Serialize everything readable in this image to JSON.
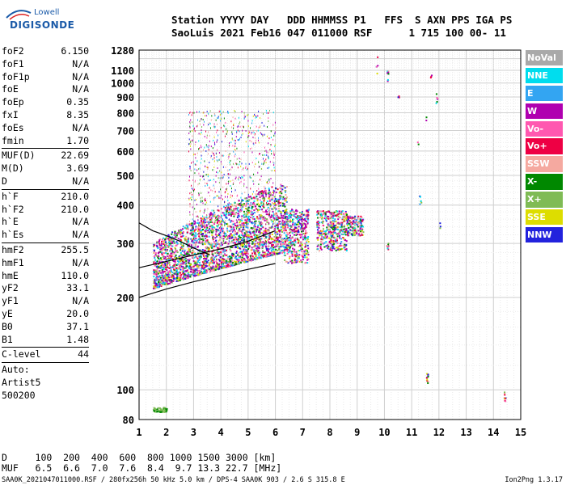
{
  "logo": {
    "top": "Lowell",
    "bottom": "DIGISONDE"
  },
  "header": {
    "line1": "Station YYYY DAY   DDD HHMMSS P1   FFS  S AXN PPS IGA PS",
    "line2": "SaoLuis 2021 Feb16 047 011000 RSF      1 715 100 00- 11"
  },
  "params": {
    "group1": [
      {
        "k": "foF2",
        "v": "6.150"
      },
      {
        "k": "foF1",
        "v": "N/A"
      },
      {
        "k": "foF1p",
        "v": "N/A"
      },
      {
        "k": "foE",
        "v": "N/A"
      },
      {
        "k": "foEp",
        "v": "0.35"
      },
      {
        "k": "fxI",
        "v": "8.35"
      },
      {
        "k": "foEs",
        "v": "N/A"
      },
      {
        "k": "fmin",
        "v": "1.70"
      }
    ],
    "group2": [
      {
        "k": "MUF(D)",
        "v": "22.69"
      },
      {
        "k": "M(D)",
        "v": "3.69"
      },
      {
        "k": "D",
        "v": "N/A"
      }
    ],
    "group3": [
      {
        "k": "h`F",
        "v": "210.0"
      },
      {
        "k": "h`F2",
        "v": "210.0"
      },
      {
        "k": "h`E",
        "v": "N/A"
      },
      {
        "k": "h`Es",
        "v": "N/A"
      }
    ],
    "group4": [
      {
        "k": "hmF2",
        "v": "255.5"
      },
      {
        "k": "hmF1",
        "v": "N/A"
      },
      {
        "k": "hmE",
        "v": "110.0"
      },
      {
        "k": "yF2",
        "v": "33.1"
      },
      {
        "k": "yF1",
        "v": "N/A"
      },
      {
        "k": "yE",
        "v": "20.0"
      },
      {
        "k": "B0",
        "v": "37.1"
      },
      {
        "k": "B1",
        "v": "1.48"
      }
    ],
    "clevel": {
      "k": "C-level",
      "v": "44"
    },
    "auto": [
      "Auto:",
      "Artist5",
      "500200"
    ]
  },
  "legend": [
    {
      "label": "NoVal",
      "color": "#a9a9a9"
    },
    {
      "label": "NNE",
      "color": "#00ddee"
    },
    {
      "label": "E",
      "color": "#33a5f2"
    },
    {
      "label": "W",
      "color": "#b000b0"
    },
    {
      "label": "Vo-",
      "color": "#ff58b0"
    },
    {
      "label": "Vo+",
      "color": "#ee0044"
    },
    {
      "label": "SSW",
      "color": "#f5a9a0"
    },
    {
      "label": "X-",
      "color": "#008800"
    },
    {
      "label": "X+",
      "color": "#7fbb55"
    },
    {
      "label": "SSE",
      "color": "#dddd00"
    },
    {
      "label": "NNW",
      "color": "#2222dd"
    }
  ],
  "bottom": {
    "d_row": "D     100  200  400  600  800 1000 1500 3000 [km]",
    "muf_row": "MUF   6.5  6.6  7.0  7.6  8.4  9.7 13.3 22.7 [MHz]",
    "footer": "SAA0K_2021047011000.RSF / 280fx256h 50 kHz 5.0 km / DPS-4 SAA0K 903 / 2.6 S 315.8 E",
    "version": "Ion2Png 1.3.17"
  },
  "chart_data": {
    "type": "scatter",
    "title": "",
    "xlabel": "",
    "ylabel": "",
    "xlim": [
      1,
      15
    ],
    "ylim": [
      80,
      1280
    ],
    "yscale": "log",
    "x_ticks": [
      1,
      2,
      3,
      4,
      5,
      6,
      7,
      8,
      9,
      10,
      11,
      12,
      13,
      14,
      15
    ],
    "y_ticks": [
      80,
      100,
      200,
      300,
      400,
      500,
      600,
      700,
      800,
      900,
      1000,
      1100,
      1280
    ],
    "grid": true,
    "legend_position": "right",
    "trace_curves": [
      {
        "name": "",
        "points": [
          [
            1.0,
            200
          ],
          [
            2.0,
            213
          ],
          [
            3.0,
            225
          ],
          [
            4.0,
            236
          ],
          [
            5.0,
            247
          ],
          [
            6.0,
            258
          ]
        ]
      },
      {
        "name": "",
        "points": [
          [
            1.0,
            350
          ],
          [
            1.5,
            330
          ],
          [
            2.0,
            318
          ],
          [
            2.5,
            305
          ],
          [
            3.0,
            290
          ],
          [
            3.6,
            275
          ]
        ]
      },
      {
        "name": "",
        "points": [
          [
            1.0,
            250
          ],
          [
            2.0,
            262
          ],
          [
            3.0,
            275
          ],
          [
            4.0,
            288
          ],
          [
            5.0,
            305
          ],
          [
            6.0,
            330
          ]
        ]
      }
    ]
  }
}
